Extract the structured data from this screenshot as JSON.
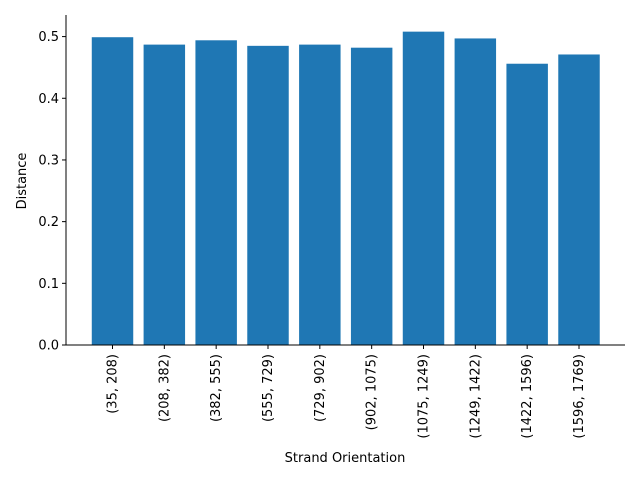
{
  "chart_data": {
    "type": "bar",
    "title": "",
    "xlabel": "Strand Orientation",
    "ylabel": "Distance",
    "categories": [
      "(35, 208)",
      "(208, 382)",
      "(382, 555)",
      "(555, 729)",
      "(729, 902)",
      "(902, 1075)",
      "(1075, 1249)",
      "(1249, 1422)",
      "(1422, 1596)",
      "(1596, 1769)"
    ],
    "values": [
      0.499,
      0.487,
      0.494,
      0.485,
      0.487,
      0.482,
      0.508,
      0.497,
      0.456,
      0.471
    ],
    "ylim": [
      0,
      0.535
    ],
    "yticks": [
      0.0,
      0.1,
      0.2,
      0.3,
      0.4,
      0.5
    ],
    "ytick_labels": [
      "0.0",
      "0.1",
      "0.2",
      "0.3",
      "0.4",
      "0.5"
    ],
    "grid": false,
    "bar_color": "#1f77b4"
  }
}
